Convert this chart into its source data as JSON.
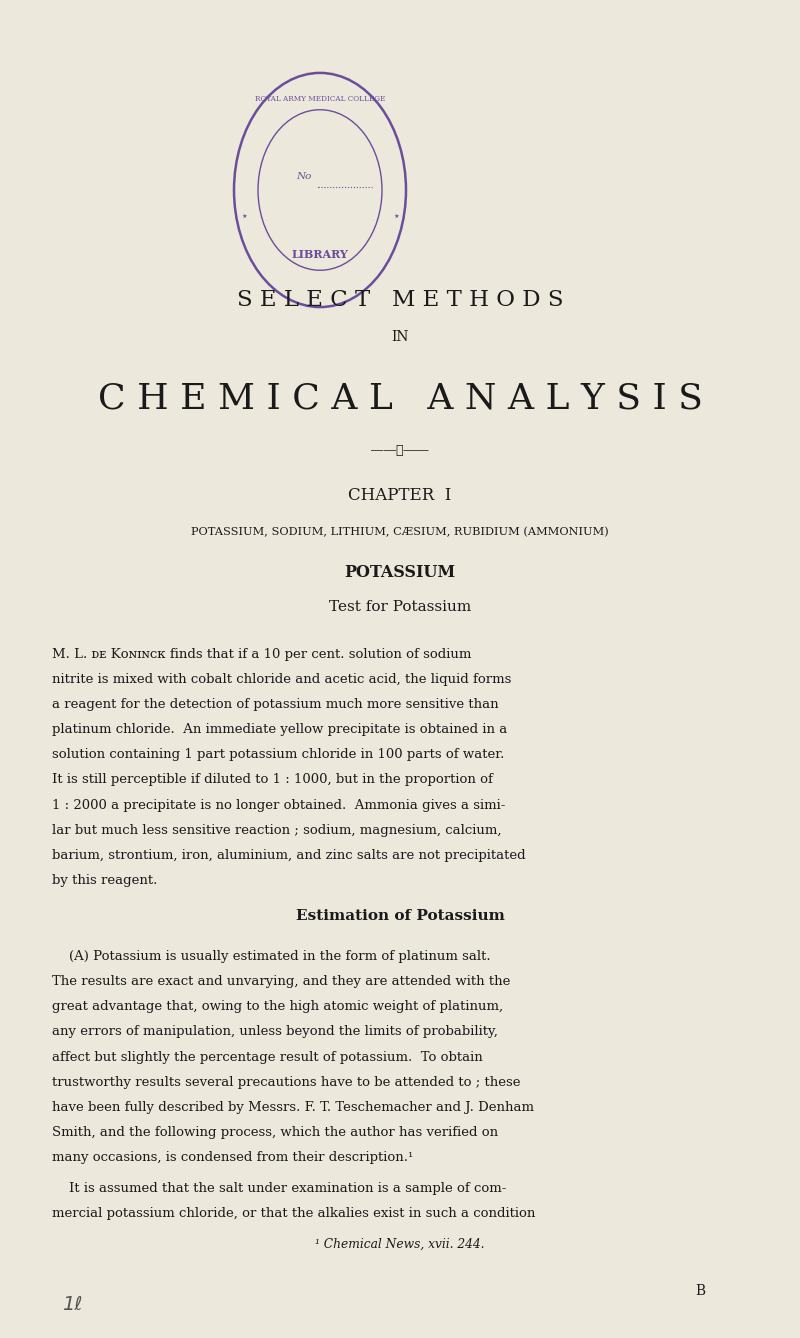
{
  "bg_color": "#EDE8DC",
  "text_color": "#1a1a1a",
  "stamp_color": "#6B4E9B",
  "page_width": 8.0,
  "page_height": 13.38,
  "title1": "S E L E C T   M E T H O D S",
  "title2": "IN",
  "title3": "C H E M I C A L   A N A L Y S I S",
  "chapter_line": "CHAPTER  I",
  "subheading": "POTASSIUM, SODIUM, LITHIUM, CÆSIUM, RUBIDIUM (AMMONIUM)",
  "section1": "POTASSIUM",
  "section2": "Test for Potassium",
  "section3": "Estimation of Potassium",
  "footnote": "¹ Chemical News, xvii. 244.",
  "page_letter": "B",
  "stamp_text_top": "ROYAL ARMY MEDICAL COLLEGE",
  "stamp_text_bot": "LIBRARY",
  "lines_para1": [
    "M. L. ᴅᴇ Kᴏɴɪɴᴄᴋ finds that if a 10 per cent. solution of sodium",
    "nitrite is mixed with cobalt chloride and acetic acid, the liquid forms",
    "a reagent for the detection of potassium much more sensitive than",
    "platinum chloride.  An immediate yellow precipitate is obtained in a",
    "solution containing 1 part potassium chloride in 100 parts of water.",
    "It is still perceptible if diluted to 1 : 1000, but in the proportion of",
    "1 : 2000 a precipitate is no longer obtained.  Ammonia gives a simi-",
    "lar but much less sensitive reaction ; sodium, magnesium, calcium,",
    "barium, strontium, iron, aluminium, and zinc salts are not precipitated",
    "by this reagent."
  ],
  "lines_para2": [
    "    (A) Potassium is usually estimated in the form of platinum salt.",
    "The results are exact and unvarying, and they are attended with the",
    "great advantage that, owing to the high atomic weight of platinum,",
    "any errors of manipulation, unless beyond the limits of probability,",
    "affect but slightly the percentage result of potassium.  To obtain",
    "trustworthy results several precautions have to be attended to ; these",
    "have been fully described by Messrs. F. T. Teschemacher and J. Denham",
    "Smith, and the following process, which the author has verified on",
    "many occasions, is condensed from their description.¹"
  ],
  "lines_para3": [
    "    It is assumed that the salt under examination is a sample of com-",
    "mercial potassium chloride, or that the alkalies exist in such a condition"
  ]
}
